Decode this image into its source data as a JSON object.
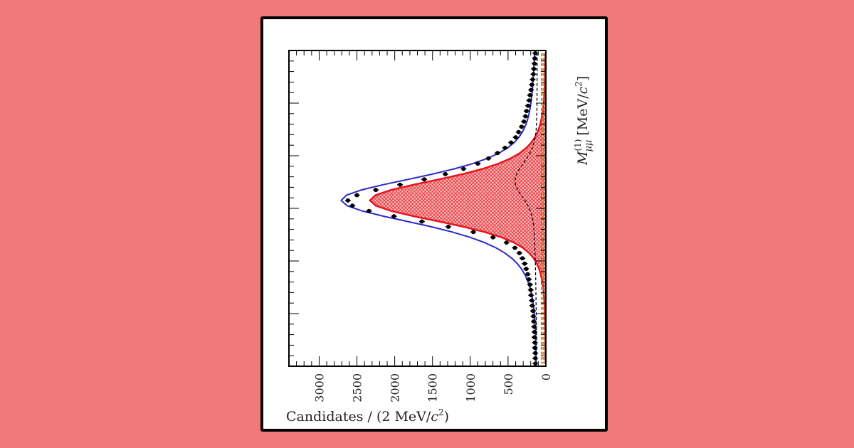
{
  "chart_data": {
    "type": "line",
    "orientation": "rotated-90",
    "x_axis": {
      "label_main": "M",
      "label_sub": "μμ",
      "label_sup": "(1)",
      "label_units_pre": "[MeV/",
      "label_units_c": "c",
      "label_units_post": "]",
      "range": [
        3036,
        3156
      ],
      "tick_labels_shown": false
    },
    "y_axis": {
      "label_pre": "Candidates / (2 MeV/",
      "label_c": "c",
      "label_post": ")",
      "range": [
        0,
        3400
      ],
      "ticks": [
        0,
        500,
        1000,
        1500,
        2000,
        2500,
        3000
      ],
      "tick_labels": [
        "0",
        "500",
        "1000",
        "1500",
        "2000",
        "2500",
        "3000"
      ]
    },
    "x": [
      3037,
      3039,
      3041,
      3043,
      3045,
      3047,
      3049,
      3051,
      3053,
      3055,
      3057,
      3059,
      3061,
      3063,
      3065,
      3067,
      3069,
      3071,
      3073,
      3075,
      3077,
      3079,
      3081,
      3083,
      3085,
      3087,
      3089,
      3091,
      3093,
      3095,
      3097,
      3099,
      3101,
      3103,
      3105,
      3107,
      3109,
      3111,
      3113,
      3115,
      3117,
      3119,
      3121,
      3123,
      3125,
      3127,
      3129,
      3131,
      3133,
      3135,
      3137,
      3139,
      3141,
      3143,
      3145,
      3147,
      3149,
      3151,
      3153,
      3155
    ],
    "series": [
      {
        "name": "data",
        "style": "points",
        "color": "#000000",
        "values": [
          140,
          145,
          150,
          158,
          165,
          175,
          185,
          195,
          210,
          220,
          235,
          255,
          270,
          290,
          320,
          360,
          400,
          460,
          540,
          640,
          760,
          900,
          1090,
          1330,
          1610,
          1930,
          2250,
          2500,
          2620,
          2560,
          2340,
          2010,
          1640,
          1290,
          960,
          700,
          520,
          410,
          350,
          310,
          280,
          260,
          240,
          225,
          210,
          200,
          195,
          185,
          180,
          170,
          165,
          160,
          155,
          150,
          150,
          145,
          145,
          140,
          140,
          138
        ]
      },
      {
        "name": "total fit",
        "style": "line",
        "color": "#2b2bcc",
        "values": [
          150,
          153,
          156,
          160,
          164,
          168,
          173,
          178,
          185,
          193,
          203,
          215,
          230,
          250,
          276,
          311,
          357,
          420,
          505,
          620,
          772,
          968,
          1213,
          1503,
          1826,
          2152,
          2441,
          2640,
          2708,
          2630,
          2429,
          2146,
          1828,
          1515,
          1237,
          1004,
          813,
          660,
          541,
          449,
          378,
          323,
          281,
          248,
          222,
          202,
          186,
          173,
          163,
          155,
          149,
          144,
          140,
          137,
          135,
          133,
          131,
          130,
          129,
          128
        ]
      },
      {
        "name": "signal component",
        "style": "filled-hatched",
        "color": "#e8141e",
        "values": [
          5,
          6,
          7,
          8,
          10,
          12,
          14,
          17,
          21,
          26,
          32,
          40,
          51,
          65,
          84,
          110,
          144,
          192,
          257,
          345,
          465,
          626,
          837,
          1103,
          1418,
          1748,
          2047,
          2254,
          2328,
          2250,
          2044,
          1745,
          1409,
          1087,
          809,
          587,
          422,
          303,
          219,
          160,
          119,
          89,
          68,
          52,
          41,
          32,
          26,
          21,
          17,
          14,
          12,
          10,
          8,
          7,
          6,
          5,
          5,
          4,
          4,
          3
        ]
      },
      {
        "name": "dashed component",
        "style": "dashed-line",
        "color": "#000000",
        "values": [
          115,
          115,
          115,
          115,
          116,
          116,
          116,
          116,
          117,
          117,
          118,
          118,
          120,
          122,
          126,
          131,
          141,
          156,
          178,
          211,
          253,
          300,
          348,
          387,
          408,
          402,
          372,
          326,
          277,
          235,
          204,
          183,
          169,
          160,
          154,
          150,
          147,
          145,
          143,
          141,
          139,
          137,
          136,
          134,
          133,
          132,
          131,
          130,
          129,
          128,
          127,
          126,
          126,
          125,
          124,
          124,
          123,
          123,
          122,
          122
        ]
      },
      {
        "name": "magenta component",
        "style": "dashed-line",
        "color": "#cc33cc",
        "values": [
          60,
          60,
          60,
          60,
          60,
          60,
          60,
          60,
          60,
          60,
          60,
          60,
          60,
          60,
          60,
          60,
          60,
          60,
          60,
          60,
          60,
          60,
          60,
          60,
          60,
          60,
          60,
          60,
          60,
          60,
          60,
          60,
          60,
          60,
          60,
          60,
          60,
          60,
          60,
          60,
          60,
          60,
          60,
          60,
          60,
          60,
          60,
          60,
          60,
          60,
          60,
          60,
          60,
          60,
          60,
          60,
          60,
          60,
          60,
          60
        ]
      },
      {
        "name": "green component",
        "style": "dashed-line",
        "color": "#1e9e3a",
        "values": [
          25,
          25,
          25,
          25,
          25,
          25,
          25,
          25,
          25,
          25,
          25,
          25,
          25,
          25,
          25,
          25,
          25,
          25,
          25,
          25,
          25,
          25,
          25,
          25,
          25,
          25,
          25,
          25,
          25,
          25,
          25,
          25,
          25,
          25,
          25,
          25,
          25,
          25,
          25,
          25,
          25,
          25,
          25,
          25,
          25,
          25,
          25,
          25,
          25,
          25,
          25,
          25,
          25,
          25,
          25,
          25,
          25,
          25,
          25,
          25
        ]
      },
      {
        "name": "orange component",
        "style": "dashed-line",
        "color": "#e08a1e",
        "values": [
          40,
          40,
          40,
          40,
          40,
          40,
          40,
          40,
          40,
          40,
          40,
          40,
          40,
          40,
          40,
          40,
          40,
          40,
          40,
          40,
          40,
          40,
          40,
          40,
          40,
          40,
          40,
          40,
          40,
          40,
          40,
          40,
          40,
          40,
          40,
          40,
          40,
          40,
          40,
          40,
          40,
          40,
          40,
          40,
          40,
          40,
          40,
          40,
          40,
          40,
          40,
          40,
          40,
          40,
          40,
          40,
          40,
          40,
          40,
          40
        ]
      }
    ],
    "legend": "none",
    "grid": false
  }
}
